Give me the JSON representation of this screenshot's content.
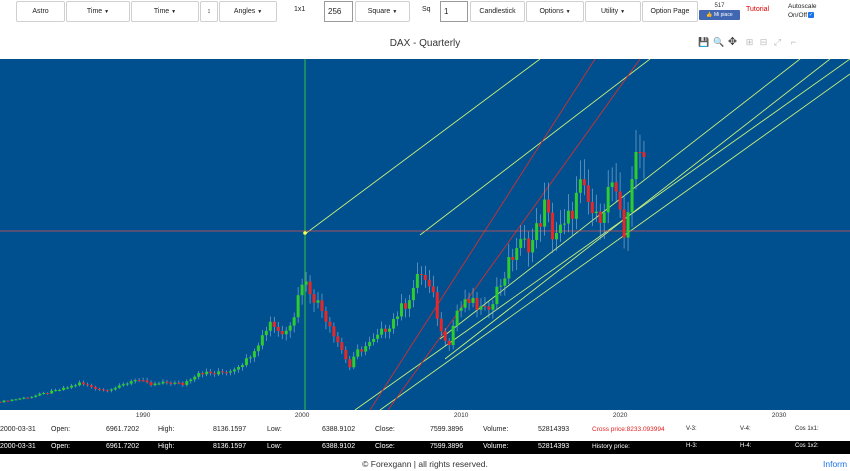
{
  "toolbar": {
    "astro": "Astro",
    "time1": "Time",
    "time2": "Time",
    "updown": "↕",
    "angles": "Angles",
    "ratio": "1x1",
    "ratio_value": "256",
    "square": "Square",
    "sq": "Sq",
    "sq_value": "1",
    "candlestick": "Candlestick",
    "options": "Options",
    "utility": "Utility",
    "option_page": "Option Page",
    "fb_count": "517",
    "fb_like": "👍 Mi piace",
    "tutorial": "Tutorial",
    "autoscale_label": "Autoscale",
    "autoscale_onoff": "On/Off"
  },
  "chart": {
    "title": "DAX - Quarterly",
    "modebar": [
      "save-icon",
      "zoom-icon",
      "pan-icon",
      "zoom-in-icon",
      "zoom-out-icon",
      "autoscale-icon",
      "reset-icon"
    ]
  },
  "chart_data": {
    "type": "candlestick",
    "title": "DAX - Quarterly",
    "x_tick_labels": [
      "1990",
      "2000",
      "2010",
      "2020",
      "2030"
    ],
    "x_range": [
      1981,
      2035
    ],
    "y_range": [
      0,
      20000
    ],
    "colors": {
      "up": "#2ecc2e",
      "down": "#e82828",
      "background": "#00508f",
      "trendline": "#c8f07a",
      "red_line": "#d03030",
      "crosshair_v": "#38d038",
      "crosshair_h": "#d85050"
    },
    "crosshair": {
      "date": "2000-03-31",
      "value": 8136
    },
    "quarterly_close": [
      {
        "year": 1981.0,
        "close": 480
      },
      {
        "year": 1983.0,
        "close": 780
      },
      {
        "year": 1985.0,
        "close": 1230
      },
      {
        "year": 1986.0,
        "close": 1550
      },
      {
        "year": 1987.5,
        "close": 1150
      },
      {
        "year": 1988.5,
        "close": 1350
      },
      {
        "year": 1989.5,
        "close": 1800
      },
      {
        "year": 1990.5,
        "close": 1450
      },
      {
        "year": 1991.5,
        "close": 1600
      },
      {
        "year": 1992.5,
        "close": 1500
      },
      {
        "year": 1993.5,
        "close": 2200
      },
      {
        "year": 1994.5,
        "close": 2100
      },
      {
        "year": 1995.5,
        "close": 2300
      },
      {
        "year": 1996.5,
        "close": 2900
      },
      {
        "year": 1997.5,
        "close": 4300
      },
      {
        "year": 1998.0,
        "close": 5200
      },
      {
        "year": 1998.75,
        "close": 4400
      },
      {
        "year": 1999.5,
        "close": 5600
      },
      {
        "year": 2000.0,
        "close": 7600
      },
      {
        "year": 2000.5,
        "close": 7000
      },
      {
        "year": 2001.0,
        "close": 6200
      },
      {
        "year": 2001.75,
        "close": 5000
      },
      {
        "year": 2002.5,
        "close": 3500
      },
      {
        "year": 2003.0,
        "close": 2500
      },
      {
        "year": 2003.5,
        "close": 3400
      },
      {
        "year": 2004.5,
        "close": 4000
      },
      {
        "year": 2005.5,
        "close": 5000
      },
      {
        "year": 2006.5,
        "close": 6200
      },
      {
        "year": 2007.5,
        "close": 8000
      },
      {
        "year": 2008.25,
        "close": 6500
      },
      {
        "year": 2008.75,
        "close": 4500
      },
      {
        "year": 2009.25,
        "close": 4000
      },
      {
        "year": 2009.75,
        "close": 5800
      },
      {
        "year": 2010.5,
        "close": 6300
      },
      {
        "year": 2011.5,
        "close": 5700
      },
      {
        "year": 2012.5,
        "close": 7400
      },
      {
        "year": 2013.5,
        "close": 9500
      },
      {
        "year": 2014.5,
        "close": 9800
      },
      {
        "year": 2015.25,
        "close": 11800
      },
      {
        "year": 2015.75,
        "close": 10300
      },
      {
        "year": 2016.5,
        "close": 10500
      },
      {
        "year": 2017.5,
        "close": 12900
      },
      {
        "year": 2018.5,
        "close": 11000
      },
      {
        "year": 2019.5,
        "close": 13200
      },
      {
        "year": 2020.25,
        "close": 10000
      },
      {
        "year": 2020.75,
        "close": 13700
      },
      {
        "year": 2021.5,
        "close": 15500
      }
    ]
  },
  "row1": {
    "date": "2000-03-31",
    "open_label": "Open:",
    "open": "6961.7202",
    "high_label": "High:",
    "high": "8136.1597",
    "low_label": "Low:",
    "low": "6388.9102",
    "close_label": "Close:",
    "close": "7599.3896",
    "volume_label": "Volume:",
    "volume": "52814393",
    "cross_price": "Cross price:8233.093994",
    "v3": "V-3:",
    "v4": "V-4:",
    "cos": "Cos 1x1:"
  },
  "row2": {
    "date": "2000-03-31",
    "open_label": "Open:",
    "open": "6961.7202",
    "high_label": "High:",
    "high": "8136.1597",
    "low_label": "Low:",
    "low": "6388.9102",
    "close_label": "Close:",
    "close": "7599.3896",
    "volume_label": "Volume:",
    "volume": "52814393",
    "history_price": "History price:",
    "h3": "H-3:",
    "h4": "H-4:",
    "cos": "Cos 1x2:"
  },
  "footer": {
    "text": "© Forexgann | all rights reserved.",
    "info": "Inform"
  }
}
